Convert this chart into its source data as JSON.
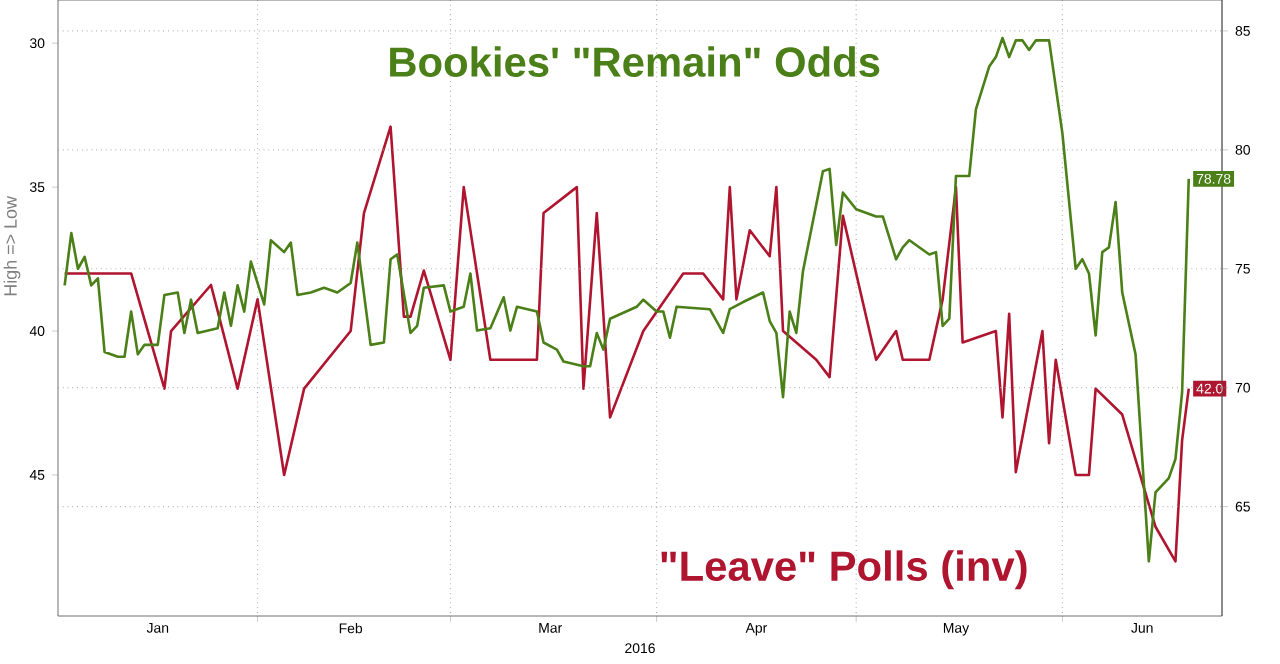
{
  "chart_data": {
    "type": "line",
    "ylabel": "High => Low",
    "xlabel": "2016",
    "xlim": [
      "2016-01-02",
      "2016-06-25"
    ],
    "xticks": [
      {
        "value": "2016-02-01",
        "label": null
      },
      {
        "value": "2016-03-01",
        "label": null
      },
      {
        "value": "2016-04-01",
        "label": null
      },
      {
        "value": "2016-05-01",
        "label": null
      },
      {
        "value": "2016-06-01",
        "label": null
      },
      {
        "value": "2016-01-17",
        "label": "Jan"
      },
      {
        "value": "2016-02-15",
        "label": "Feb"
      },
      {
        "value": "2016-03-16",
        "label": "Mar"
      },
      {
        "value": "2016-04-16",
        "label": "Apr"
      },
      {
        "value": "2016-05-16",
        "label": "May"
      },
      {
        "value": "2016-06-13",
        "label": "Jun"
      }
    ],
    "ylim": [
      49.9,
      28.5
    ],
    "yticks": [
      30,
      35,
      40,
      45
    ],
    "y2lim": [
      60.4,
      86.3
    ],
    "y2ticks": [
      65,
      70,
      75,
      80,
      85
    ],
    "grid": true,
    "series": [
      {
        "name": "\"Leave\" Polls (inv)",
        "color": "#b01530",
        "axis": "y",
        "x": [
          "2016-01-03",
          "2016-01-13",
          "2016-01-18",
          "2016-01-19",
          "2016-01-25",
          "2016-01-29",
          "2016-02-01",
          "2016-02-05",
          "2016-02-08",
          "2016-02-15",
          "2016-02-17",
          "2016-02-21",
          "2016-02-23",
          "2016-02-24",
          "2016-02-26",
          "2016-03-01",
          "2016-03-03",
          "2016-03-07",
          "2016-03-14",
          "2016-03-15",
          "2016-03-20",
          "2016-03-21",
          "2016-03-23",
          "2016-03-25",
          "2016-03-30",
          "2016-04-05",
          "2016-04-08",
          "2016-04-11",
          "2016-04-12",
          "2016-04-13",
          "2016-04-15",
          "2016-04-18",
          "2016-04-19",
          "2016-04-20",
          "2016-04-25",
          "2016-04-27",
          "2016-04-29",
          "2016-05-04",
          "2016-05-07",
          "2016-05-08",
          "2016-05-12",
          "2016-05-14",
          "2016-05-16",
          "2016-05-17",
          "2016-05-22",
          "2016-05-23",
          "2016-05-24",
          "2016-05-25",
          "2016-05-29",
          "2016-05-30",
          "2016-05-31",
          "2016-06-03",
          "2016-06-05",
          "2016-06-06",
          "2016-06-10",
          "2016-06-15",
          "2016-06-18",
          "2016-06-19",
          "2016-06-20"
        ],
        "values": [
          38,
          38,
          42,
          40,
          38.4,
          42,
          38.9,
          45,
          42,
          40,
          35.9,
          32.9,
          39.5,
          39.5,
          37.9,
          41,
          35,
          41,
          41,
          35.9,
          35,
          42,
          35.9,
          43,
          40,
          38,
          38,
          38.9,
          35,
          38.9,
          36.5,
          37.4,
          35,
          40,
          41,
          41.6,
          36,
          41,
          40,
          41,
          41,
          38.9,
          35,
          40.4,
          40,
          43,
          39.4,
          44.9,
          40,
          43.9,
          41,
          45,
          45,
          42,
          42.9,
          46.8,
          48,
          43.8,
          42.0
        ],
        "value_labels": [
          null,
          null,
          null,
          null,
          null,
          null,
          null,
          null,
          null,
          null,
          null,
          null,
          null,
          null,
          null,
          null,
          null,
          null,
          null,
          null,
          null,
          null,
          null,
          null,
          null,
          null,
          null,
          null,
          null,
          null,
          null,
          null,
          null,
          null,
          null,
          null,
          null,
          null,
          null,
          null,
          null,
          null,
          null,
          null,
          null,
          null,
          null,
          null,
          null,
          null,
          null,
          null,
          null,
          null,
          null,
          null,
          null,
          null,
          "42.0"
        ]
      },
      {
        "name": "Bookies' \"Remain\" Odds",
        "color": "#4b7f17",
        "axis": "y2",
        "x": [
          "2016-01-03",
          "2016-01-04",
          "2016-01-05",
          "2016-01-06",
          "2016-01-07",
          "2016-01-08",
          "2016-01-09",
          "2016-01-11",
          "2016-01-12",
          "2016-01-13",
          "2016-01-14",
          "2016-01-15",
          "2016-01-17",
          "2016-01-18",
          "2016-01-20",
          "2016-01-21",
          "2016-01-22",
          "2016-01-23",
          "2016-01-26",
          "2016-01-27",
          "2016-01-28",
          "2016-01-29",
          "2016-01-30",
          "2016-01-31",
          "2016-02-02",
          "2016-02-03",
          "2016-02-05",
          "2016-02-06",
          "2016-02-07",
          "2016-02-09",
          "2016-02-11",
          "2016-02-13",
          "2016-02-15",
          "2016-02-16",
          "2016-02-18",
          "2016-02-20",
          "2016-02-21",
          "2016-02-22",
          "2016-02-24",
          "2016-02-25",
          "2016-02-26",
          "2016-02-29",
          "2016-03-01",
          "2016-03-03",
          "2016-03-04",
          "2016-03-05",
          "2016-03-07",
          "2016-03-09",
          "2016-03-10",
          "2016-03-11",
          "2016-03-14",
          "2016-03-15",
          "2016-03-17",
          "2016-03-18",
          "2016-03-21",
          "2016-03-22",
          "2016-03-23",
          "2016-03-24",
          "2016-03-25",
          "2016-03-29",
          "2016-03-30",
          "2016-04-01",
          "2016-04-02",
          "2016-04-03",
          "2016-04-04",
          "2016-04-09",
          "2016-04-11",
          "2016-04-12",
          "2016-04-14",
          "2016-04-17",
          "2016-04-18",
          "2016-04-19",
          "2016-04-20",
          "2016-04-21",
          "2016-04-22",
          "2016-04-23",
          "2016-04-26",
          "2016-04-27",
          "2016-04-28",
          "2016-04-29",
          "2016-05-01",
          "2016-05-04",
          "2016-05-05",
          "2016-05-07",
          "2016-05-08",
          "2016-05-09",
          "2016-05-12",
          "2016-05-13",
          "2016-05-14",
          "2016-05-15",
          "2016-05-16",
          "2016-05-18",
          "2016-05-19",
          "2016-05-21",
          "2016-05-22",
          "2016-05-23",
          "2016-05-24",
          "2016-05-25",
          "2016-05-26",
          "2016-05-27",
          "2016-05-28",
          "2016-05-30",
          "2016-06-01",
          "2016-06-03",
          "2016-06-04",
          "2016-06-05",
          "2016-06-06",
          "2016-06-07",
          "2016-06-08",
          "2016-06-09",
          "2016-06-10",
          "2016-06-12",
          "2016-06-14",
          "2016-06-15",
          "2016-06-17",
          "2016-06-18",
          "2016-06-19",
          "2016-06-20"
        ],
        "values": [
          74.3,
          76.5,
          75.0,
          75.5,
          74.3,
          74.6,
          71.5,
          71.3,
          71.3,
          73.2,
          71.4,
          71.8,
          71.8,
          73.9,
          74.0,
          72.3,
          73.7,
          72.3,
          72.5,
          74.0,
          72.6,
          74.3,
          73.2,
          75.3,
          73.5,
          76.2,
          75.7,
          76.1,
          73.9,
          74.0,
          74.2,
          74.0,
          74.4,
          76.1,
          71.8,
          71.9,
          75.4,
          75.6,
          72.3,
          72.6,
          74.2,
          74.3,
          73.2,
          73.4,
          74.8,
          72.4,
          72.5,
          73.8,
          72.4,
          73.4,
          73.2,
          71.9,
          71.6,
          71.1,
          70.9,
          70.9,
          72.3,
          71.6,
          72.9,
          73.4,
          73.7,
          73.2,
          73.2,
          72.1,
          73.4,
          73.3,
          72.3,
          73.3,
          73.6,
          74.0,
          72.8,
          72.3,
          69.6,
          73.2,
          72.3,
          74.9,
          79.1,
          79.2,
          76.0,
          78.2,
          77.5,
          77.2,
          77.2,
          75.4,
          75.9,
          76.2,
          75.6,
          75.7,
          72.6,
          72.9,
          78.9,
          78.9,
          81.7,
          83.5,
          83.9,
          84.7,
          83.9,
          84.6,
          84.6,
          84.2,
          84.6,
          84.6,
          80.7,
          75.0,
          75.4,
          74.8,
          72.2,
          75.7,
          75.9,
          77.8,
          74.0,
          71.4,
          62.7,
          65.6,
          66.2,
          67.0,
          69.8,
          78.78
        ],
        "value_labels": [
          null,
          null,
          null,
          null,
          null,
          null,
          null,
          null,
          null,
          null,
          null,
          null,
          null,
          null,
          null,
          null,
          null,
          null,
          null,
          null,
          null,
          null,
          null,
          null,
          null,
          null,
          null,
          null,
          null,
          null,
          null,
          null,
          null,
          null,
          null,
          null,
          null,
          null,
          null,
          null,
          null,
          null,
          null,
          null,
          null,
          null,
          null,
          null,
          null,
          null,
          null,
          null,
          null,
          null,
          null,
          null,
          null,
          null,
          null,
          null,
          null,
          null,
          null,
          null,
          null,
          null,
          null,
          null,
          null,
          null,
          null,
          null,
          null,
          null,
          null,
          null,
          null,
          null,
          null,
          null,
          null,
          null,
          null,
          null,
          null,
          null,
          null,
          null,
          null,
          null,
          null,
          null,
          null,
          null,
          null,
          null,
          null,
          null,
          null,
          null,
          null,
          null,
          null,
          null,
          null,
          null,
          null,
          null,
          null,
          null,
          null,
          null,
          null,
          null,
          null,
          null,
          null,
          "78.78"
        ]
      }
    ]
  }
}
